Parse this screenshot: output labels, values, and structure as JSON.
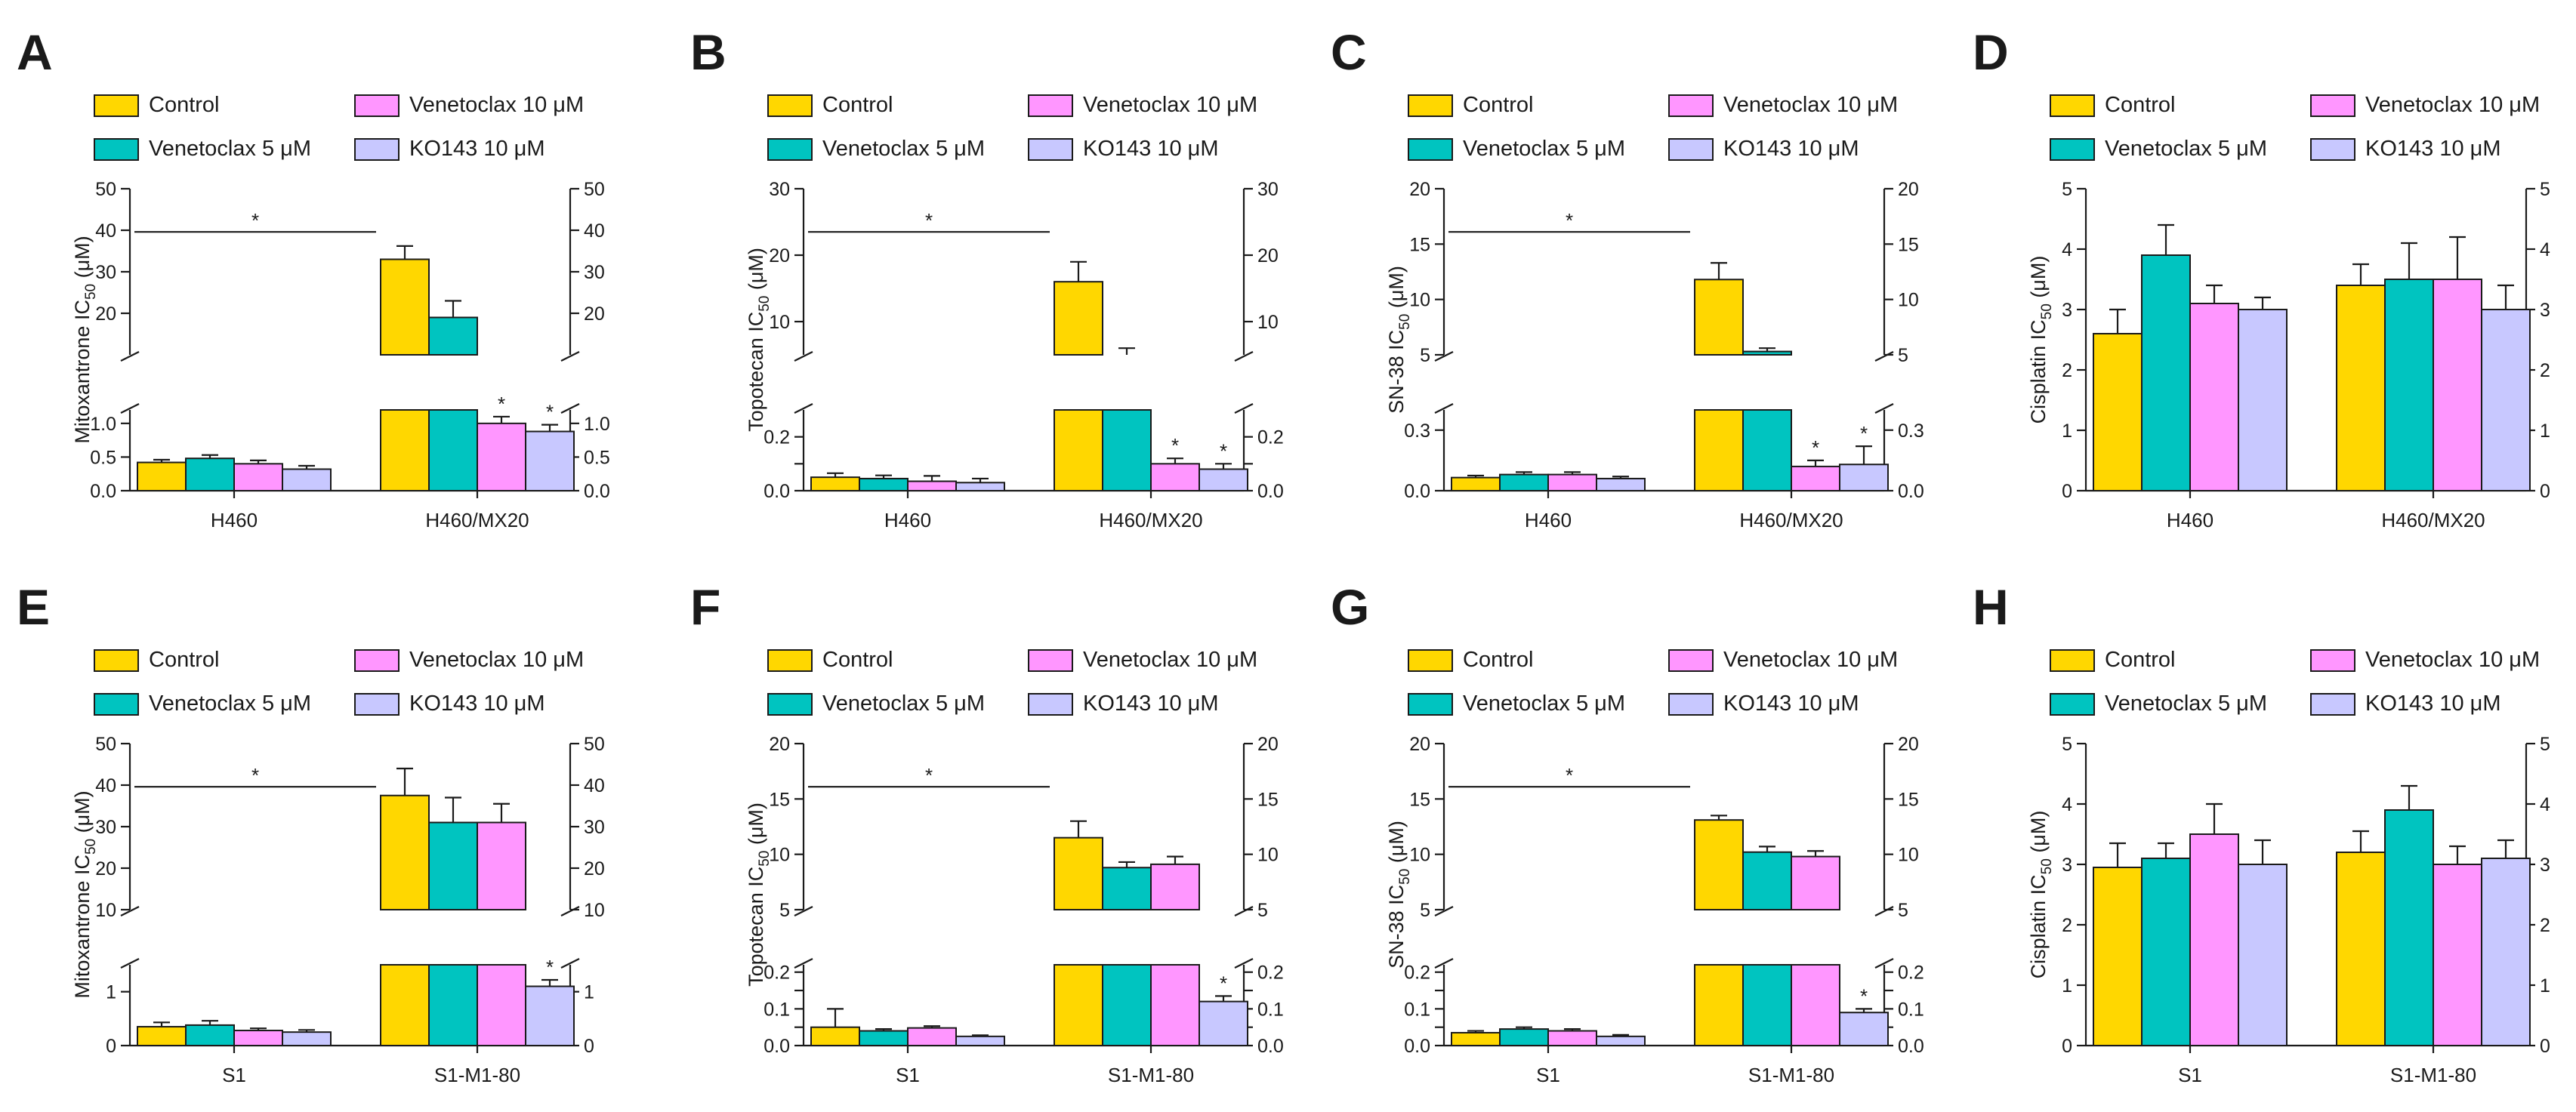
{
  "series_names": [
    "Control",
    "Venetoclax 5 μM",
    "Venetoclax 10 μM",
    "KO143 10 μM"
  ],
  "series_colors": [
    "#FFD700",
    "#00C4C0",
    "#FF96FF",
    "#C8C8FF"
  ],
  "chart_data": [
    {
      "type": "bar",
      "panel": "A",
      "ylabel_main": "Mitoxantrone IC",
      "ylabel_sub": "50",
      "ylabel_unit": " (μM)",
      "categories": [
        "H460",
        "H460/MX20"
      ],
      "series": [
        {
          "name": "Control",
          "values": [
            0.42,
            33
          ],
          "errors": [
            0.04,
            3.2
          ]
        },
        {
          "name": "Venetoclax 5 μM",
          "values": [
            0.48,
            19
          ],
          "errors": [
            0.05,
            4
          ]
        },
        {
          "name": "Venetoclax 10 μM",
          "values": [
            0.4,
            1.0
          ],
          "errors": [
            0.05,
            0.1
          ]
        },
        {
          "name": "KO143 10 μM",
          "values": [
            0.32,
            0.88
          ],
          "errors": [
            0.05,
            0.1
          ]
        }
      ],
      "lower_axis": {
        "range": [
          0,
          1.2
        ],
        "ticks": [
          0,
          0.5,
          1.0
        ],
        "tick_labels": [
          "0.0",
          "0.5",
          "1.0"
        ]
      },
      "upper_axis": {
        "range": [
          10,
          50
        ],
        "ticks": [
          20,
          30,
          40,
          50
        ],
        "tick_labels": [
          "20",
          "30",
          "40",
          "50"
        ]
      },
      "significance_bar": "*",
      "stars": [
        [
          1,
          2
        ],
        [
          1,
          3
        ]
      ]
    },
    {
      "type": "bar",
      "panel": "B",
      "ylabel_main": "Topotecan IC",
      "ylabel_sub": "50",
      "ylabel_unit": " (μM)",
      "categories": [
        "H460",
        "H460/MX20"
      ],
      "series": [
        {
          "name": "Control",
          "values": [
            0.05,
            16
          ],
          "errors": [
            0.015,
            3
          ]
        },
        {
          "name": "Venetoclax 5 μM",
          "values": [
            0.045,
            5
          ],
          "errors": [
            0.012,
            1
          ]
        },
        {
          "name": "Venetoclax 10 μM",
          "values": [
            0.035,
            0.1
          ],
          "errors": [
            0.02,
            0.02
          ]
        },
        {
          "name": "KO143 10 μM",
          "values": [
            0.03,
            0.08
          ],
          "errors": [
            0.015,
            0.02
          ]
        }
      ],
      "lower_axis": {
        "range": [
          0,
          0.3
        ],
        "ticks": [
          0,
          0.1,
          0.2
        ],
        "tick_labels": [
          "0.0",
          "",
          "0.2"
        ]
      },
      "upper_axis": {
        "range": [
          5,
          30
        ],
        "ticks": [
          10,
          20,
          30
        ],
        "tick_labels": [
          "10",
          "20",
          "30"
        ]
      },
      "significance_bar": "*",
      "stars": [
        [
          1,
          2
        ],
        [
          1,
          3
        ]
      ]
    },
    {
      "type": "bar",
      "panel": "C",
      "ylabel_main": "SN-38 IC",
      "ylabel_sub": "50",
      "ylabel_unit": " (μM)",
      "categories": [
        "H460",
        "H460/MX20"
      ],
      "series": [
        {
          "name": "Control",
          "values": [
            0.065,
            11.8
          ],
          "errors": [
            0.01,
            1.5
          ]
        },
        {
          "name": "Venetoclax 5 μM",
          "values": [
            0.08,
            5.3
          ],
          "errors": [
            0.012,
            0.3
          ]
        },
        {
          "name": "Venetoclax 10 μM",
          "values": [
            0.08,
            0.12
          ],
          "errors": [
            0.012,
            0.03
          ]
        },
        {
          "name": "KO143 10 μM",
          "values": [
            0.06,
            0.13
          ],
          "errors": [
            0.01,
            0.09
          ]
        }
      ],
      "lower_axis": {
        "range": [
          0,
          0.4
        ],
        "ticks": [
          0,
          0.3
        ],
        "tick_labels": [
          "0.0",
          "0.3"
        ]
      },
      "upper_axis": {
        "range": [
          5,
          20
        ],
        "ticks": [
          5,
          10,
          15,
          20
        ],
        "tick_labels": [
          "5",
          "10",
          "15",
          "20"
        ]
      },
      "significance_bar": "*",
      "stars": [
        [
          1,
          2
        ],
        [
          1,
          3
        ]
      ]
    },
    {
      "type": "bar",
      "panel": "D",
      "ylabel_main": "Cisplatin IC",
      "ylabel_sub": "50",
      "ylabel_unit": " (μM)",
      "categories": [
        "H460",
        "H460/MX20"
      ],
      "series": [
        {
          "name": "Control",
          "values": [
            2.6,
            3.4
          ],
          "errors": [
            0.4,
            0.35
          ]
        },
        {
          "name": "Venetoclax 5 μM",
          "values": [
            3.9,
            3.5
          ],
          "errors": [
            0.5,
            0.6
          ]
        },
        {
          "name": "Venetoclax 10 μM",
          "values": [
            3.1,
            3.5
          ],
          "errors": [
            0.3,
            0.7
          ]
        },
        {
          "name": "KO143 10 μM",
          "values": [
            3.0,
            3.0
          ],
          "errors": [
            0.2,
            0.4
          ]
        }
      ],
      "axis": {
        "range": [
          0,
          5
        ],
        "ticks": [
          0,
          1,
          2,
          3,
          4,
          5
        ],
        "tick_labels": [
          "0",
          "1",
          "2",
          "3",
          "4",
          "5"
        ]
      },
      "stars": []
    },
    {
      "type": "bar",
      "panel": "E",
      "ylabel_main": "Mitoxantrone IC",
      "ylabel_sub": "50",
      "ylabel_unit": " (μM)",
      "categories": [
        "S1",
        "S1-M1-80"
      ],
      "series": [
        {
          "name": "Control",
          "values": [
            0.35,
            37.5
          ],
          "errors": [
            0.08,
            6.5
          ]
        },
        {
          "name": "Venetoclax 5 μM",
          "values": [
            0.38,
            31
          ],
          "errors": [
            0.08,
            6
          ]
        },
        {
          "name": "Venetoclax 10 μM",
          "values": [
            0.28,
            31
          ],
          "errors": [
            0.04,
            4.5
          ]
        },
        {
          "name": "KO143 10 μM",
          "values": [
            0.25,
            1.1
          ],
          "errors": [
            0.04,
            0.12
          ]
        }
      ],
      "lower_axis": {
        "range": [
          0,
          1.5
        ],
        "ticks": [
          0,
          1
        ],
        "tick_labels": [
          "0",
          "1"
        ]
      },
      "upper_axis": {
        "range": [
          10,
          50
        ],
        "ticks": [
          10,
          20,
          30,
          40,
          50
        ],
        "tick_labels": [
          "10",
          "20",
          "30",
          "40",
          "50"
        ]
      },
      "significance_bar": "*",
      "stars": [
        [
          1,
          3
        ]
      ]
    },
    {
      "type": "bar",
      "panel": "F",
      "ylabel_main": "Topotecan IC",
      "ylabel_sub": "50",
      "ylabel_unit": " (μM)",
      "categories": [
        "S1",
        "S1-M1-80"
      ],
      "series": [
        {
          "name": "Control",
          "values": [
            0.05,
            11.5
          ],
          "errors": [
            0.05,
            1.5
          ]
        },
        {
          "name": "Venetoclax 5 μM",
          "values": [
            0.04,
            8.8
          ],
          "errors": [
            0.005,
            0.5
          ]
        },
        {
          "name": "Venetoclax 10 μM",
          "values": [
            0.048,
            9.1
          ],
          "errors": [
            0.005,
            0.7
          ]
        },
        {
          "name": "KO143 10 μM",
          "values": [
            0.025,
            0.12
          ],
          "errors": [
            0.003,
            0.015
          ]
        }
      ],
      "lower_axis": {
        "range": [
          0,
          0.22
        ],
        "ticks": [
          0,
          0.05,
          0.1,
          0.15,
          0.2
        ],
        "tick_labels": [
          "0.0",
          "",
          "0.1",
          "",
          "0.2"
        ]
      },
      "upper_axis": {
        "range": [
          5,
          20
        ],
        "ticks": [
          5,
          10,
          15,
          20
        ],
        "tick_labels": [
          "5",
          "10",
          "15",
          "20"
        ]
      },
      "significance_bar": "*",
      "stars": [
        [
          1,
          3
        ]
      ]
    },
    {
      "type": "bar",
      "panel": "G",
      "ylabel_main": "SN-38 IC",
      "ylabel_sub": "50",
      "ylabel_unit": " (μM)",
      "categories": [
        "S1",
        "S1-M1-80"
      ],
      "series": [
        {
          "name": "Control",
          "values": [
            0.035,
            13.1
          ],
          "errors": [
            0.005,
            0.4
          ]
        },
        {
          "name": "Venetoclax 5 μM",
          "values": [
            0.045,
            10.2
          ],
          "errors": [
            0.005,
            0.5
          ]
        },
        {
          "name": "Venetoclax 10 μM",
          "values": [
            0.04,
            9.8
          ],
          "errors": [
            0.005,
            0.5
          ]
        },
        {
          "name": "KO143 10 μM",
          "values": [
            0.025,
            0.09
          ],
          "errors": [
            0.004,
            0.01
          ]
        }
      ],
      "lower_axis": {
        "range": [
          0,
          0.22
        ],
        "ticks": [
          0,
          0.05,
          0.1,
          0.15,
          0.2
        ],
        "tick_labels": [
          "0.0",
          "",
          "0.1",
          "",
          "0.2"
        ]
      },
      "upper_axis": {
        "range": [
          5,
          20
        ],
        "ticks": [
          5,
          10,
          15,
          20
        ],
        "tick_labels": [
          "5",
          "10",
          "15",
          "20"
        ]
      },
      "significance_bar": "*",
      "stars": [
        [
          1,
          3
        ]
      ]
    },
    {
      "type": "bar",
      "panel": "H",
      "ylabel_main": "Cisplatin IC",
      "ylabel_sub": "50",
      "ylabel_unit": " (μM)",
      "categories": [
        "S1",
        "S1-M1-80"
      ],
      "series": [
        {
          "name": "Control",
          "values": [
            2.95,
            3.2
          ],
          "errors": [
            0.4,
            0.35
          ]
        },
        {
          "name": "Venetoclax 5 μM",
          "values": [
            3.1,
            3.9
          ],
          "errors": [
            0.25,
            0.4
          ]
        },
        {
          "name": "Venetoclax 10 μM",
          "values": [
            3.5,
            3.0
          ],
          "errors": [
            0.5,
            0.3
          ]
        },
        {
          "name": "KO143 10 μM",
          "values": [
            3.0,
            3.1
          ],
          "errors": [
            0.4,
            0.3
          ]
        }
      ],
      "axis": {
        "range": [
          0,
          5
        ],
        "ticks": [
          0,
          1,
          2,
          3,
          4,
          5
        ],
        "tick_labels": [
          "0",
          "1",
          "2",
          "3",
          "4",
          "5"
        ]
      },
      "stars": []
    }
  ]
}
